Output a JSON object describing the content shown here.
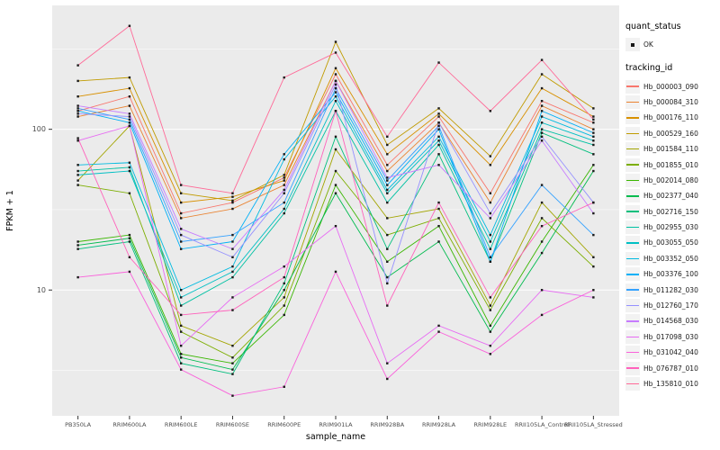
{
  "chart_data": {
    "type": "line",
    "title": "",
    "xlabel": "sample_name",
    "ylabel": "FPKM + 1",
    "y_scale": "log10",
    "ylim": [
      1.65,
      590
    ],
    "y_major": [
      10,
      100
    ],
    "y_minor": [
      3.162,
      31.62,
      316.2
    ],
    "grid": true,
    "legend_position": "right",
    "colors": {
      "panel_bg": "#EBEBEB",
      "grid": "#FFFFFF",
      "point": "#1A1A1A",
      "tick_label": "#4D4D4D"
    },
    "legend": {
      "quant_title": "quant_status",
      "quant_label": "OK",
      "tracking_title": "tracking_id"
    },
    "categories": [
      "PB350LA",
      "RRIM600LA",
      "RRIM600LE",
      "RRIM600SE",
      "RRIM600PE",
      "RRIM901LA",
      "RRIM928BA",
      "RRIM928LA",
      "RRIM928LE",
      "RRII105LA_Control",
      "RRII105LA_Stressed"
    ],
    "series": [
      {
        "name": "Hb_000003_090",
        "color": "#F8766D",
        "values": [
          130,
          160,
          30,
          35,
          50,
          220,
          60,
          120,
          40,
          150,
          110
        ]
      },
      {
        "name": "Hb_000084_310",
        "color": "#EA8331",
        "values": [
          120,
          140,
          28,
          32,
          45,
          200,
          55,
          110,
          35,
          140,
          100
        ]
      },
      {
        "name": "Hb_000176_110",
        "color": "#D89000",
        "values": [
          160,
          180,
          35,
          38,
          48,
          240,
          70,
          125,
          60,
          180,
          120
        ]
      },
      {
        "name": "Hb_000529_160",
        "color": "#C09B00",
        "values": [
          200,
          210,
          40,
          36,
          52,
          350,
          80,
          135,
          68,
          220,
          135
        ]
      },
      {
        "name": "Hb_001584_110",
        "color": "#A3A500",
        "values": [
          48,
          105,
          6,
          4.5,
          9,
          75,
          28,
          32,
          8,
          35,
          16
        ]
      },
      {
        "name": "Hb_001855_010",
        "color": "#7CAE00",
        "values": [
          45,
          40,
          5.5,
          3.8,
          8,
          55,
          22,
          28,
          7.5,
          28,
          14
        ]
      },
      {
        "name": "Hb_002014_080",
        "color": "#39B600",
        "values": [
          20,
          22,
          4,
          3.5,
          7,
          45,
          15,
          25,
          6,
          20,
          60
        ]
      },
      {
        "name": "Hb_002377_040",
        "color": "#00BB4E",
        "values": [
          19,
          21,
          3.8,
          3.2,
          10,
          40,
          12,
          20,
          5.5,
          17,
          55
        ]
      },
      {
        "name": "Hb_002716_150",
        "color": "#00BF7D",
        "values": [
          18,
          20,
          3.5,
          3,
          11,
          90,
          18,
          70,
          15,
          95,
          70
        ]
      },
      {
        "name": "Hb_002955_030",
        "color": "#00C1A3",
        "values": [
          55,
          58,
          8,
          12,
          30,
          130,
          35,
          80,
          18,
          100,
          80
        ]
      },
      {
        "name": "Hb_003055_050",
        "color": "#00BFC4",
        "values": [
          52,
          55,
          9,
          13,
          32,
          150,
          40,
          85,
          20,
          110,
          85
        ]
      },
      {
        "name": "Hb_003352_050",
        "color": "#00BAE0",
        "values": [
          60,
          62,
          10,
          14,
          65,
          160,
          42,
          90,
          22,
          120,
          90
        ]
      },
      {
        "name": "Hb_003376_100",
        "color": "#00B0F6",
        "values": [
          130,
          110,
          18,
          20,
          70,
          170,
          45,
          100,
          15,
          130,
          95
        ]
      },
      {
        "name": "Hb_011282_030",
        "color": "#35A2FF",
        "values": [
          135,
          115,
          20,
          22,
          35,
          180,
          48,
          105,
          16,
          45,
          22
        ]
      },
      {
        "name": "Hb_012760_170",
        "color": "#9590FF",
        "values": [
          125,
          120,
          22,
          16,
          40,
          190,
          11,
          110,
          30,
          90,
          35
        ]
      },
      {
        "name": "Hb_014568_030",
        "color": "#C77CFF",
        "values": [
          140,
          125,
          24,
          18,
          42,
          200,
          50,
          60,
          28,
          85,
          30
        ]
      },
      {
        "name": "Hb_017098_030",
        "color": "#E76BF3",
        "values": [
          85,
          105,
          4.5,
          9,
          14,
          25,
          3.5,
          6,
          4.5,
          10,
          9
        ]
      },
      {
        "name": "Hb_031042_040",
        "color": "#FA62DB",
        "values": [
          12,
          13,
          3.2,
          2.2,
          2.5,
          13,
          2.8,
          5.5,
          4,
          7,
          10
        ]
      },
      {
        "name": "Hb_076787_010",
        "color": "#FF62BC",
        "values": [
          88,
          16,
          7,
          7.5,
          12,
          130,
          8,
          35,
          9,
          25,
          35
        ]
      },
      {
        "name": "Hb_135810_010",
        "color": "#FF6A98",
        "values": [
          250,
          440,
          45,
          40,
          210,
          300,
          90,
          260,
          130,
          270,
          115
        ]
      }
    ]
  }
}
